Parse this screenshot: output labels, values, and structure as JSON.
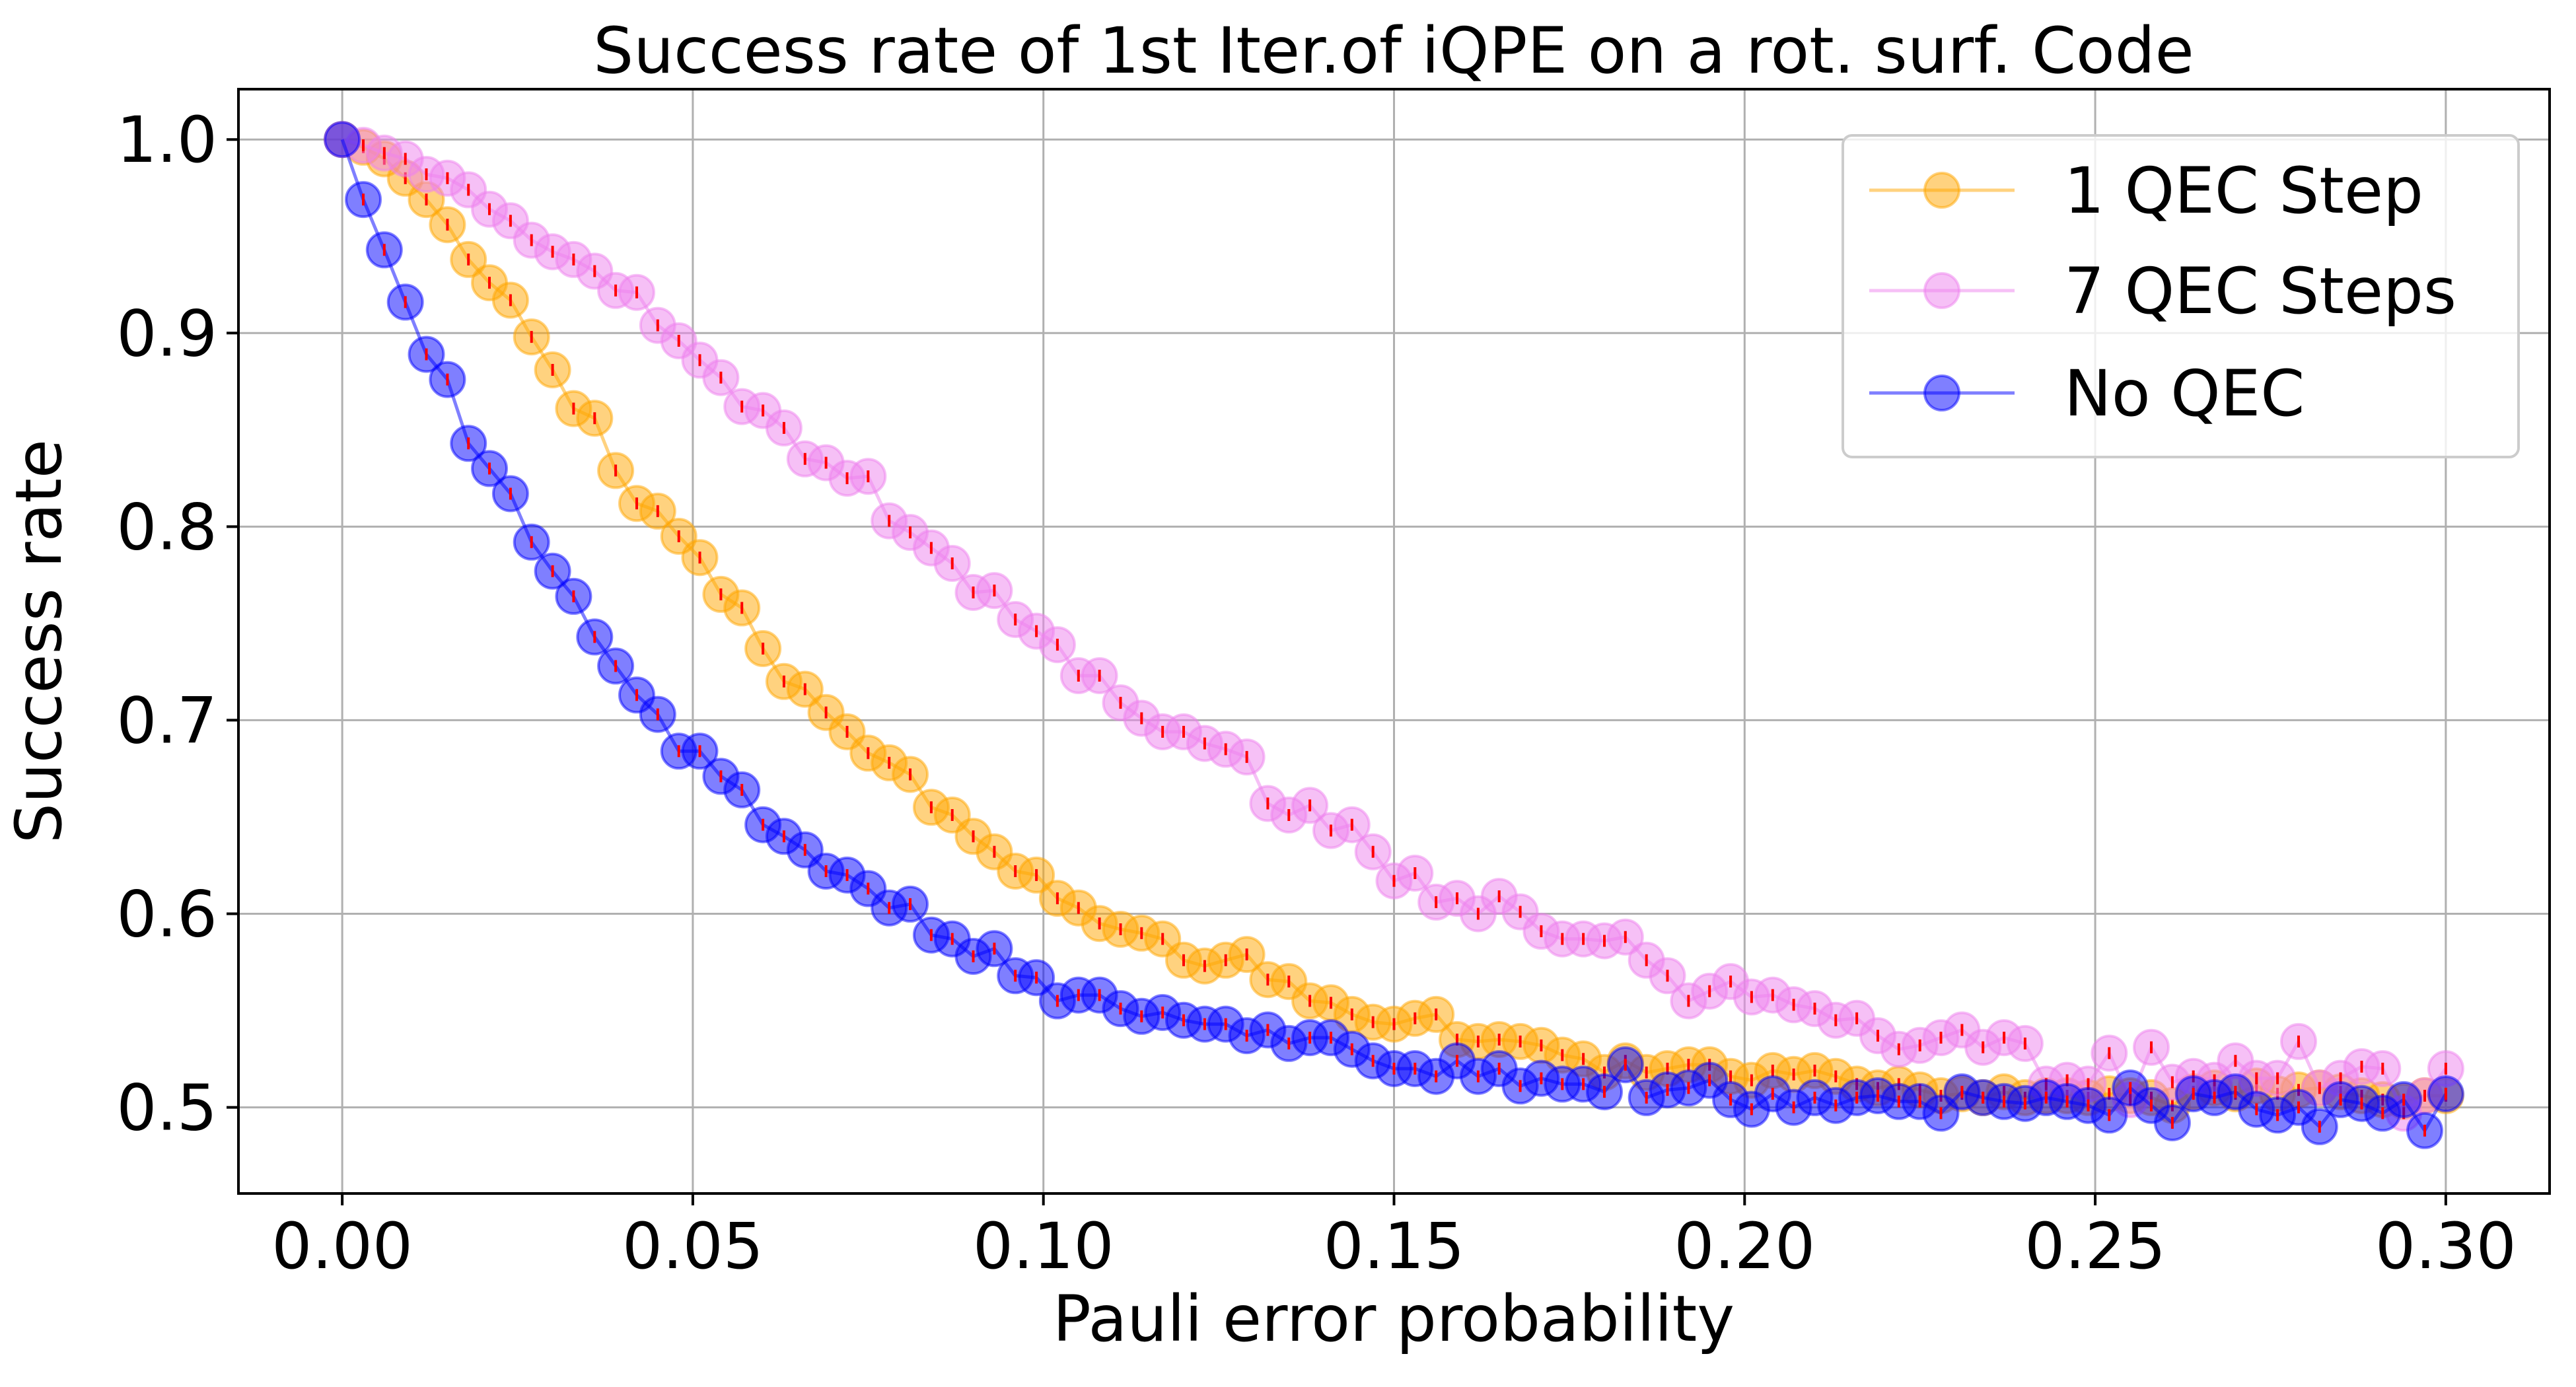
{
  "chart_data": {
    "type": "line",
    "title": "Success rate of 1st Iter.of iQPE on a rot. surf. Code",
    "xlabel": "Pauli error probability",
    "ylabel": "Success rate",
    "xlim": [
      -0.0148,
      0.3148
    ],
    "ylim": [
      0.4555,
      1.026
    ],
    "x_ticks": [
      0.0,
      0.05,
      0.1,
      0.15,
      0.2,
      0.25,
      0.3
    ],
    "x_tick_labels": [
      "0.00",
      "0.05",
      "0.10",
      "0.15",
      "0.20",
      "0.25",
      "0.30"
    ],
    "y_ticks": [
      0.5,
      0.6,
      0.7,
      0.8,
      0.9,
      1.0
    ],
    "y_tick_labels": [
      "0.5",
      "0.6",
      "0.7",
      "0.8",
      "0.9",
      "1.0"
    ],
    "grid": true,
    "legend_position": "top-right",
    "error_bar_color": "#ff0000",
    "x": [
      0.0,
      0.003,
      0.006,
      0.009,
      0.012,
      0.015,
      0.018,
      0.021,
      0.024,
      0.027,
      0.03,
      0.033,
      0.036,
      0.039,
      0.042,
      0.045,
      0.048,
      0.051,
      0.054,
      0.057,
      0.06,
      0.063,
      0.066,
      0.069,
      0.072,
      0.075,
      0.078,
      0.081,
      0.084,
      0.087,
      0.09,
      0.093,
      0.096,
      0.099,
      0.102,
      0.105,
      0.108,
      0.111,
      0.114,
      0.117,
      0.12,
      0.123,
      0.126,
      0.129,
      0.132,
      0.135,
      0.138,
      0.141,
      0.144,
      0.147,
      0.15,
      0.153,
      0.156,
      0.159,
      0.162,
      0.165,
      0.168,
      0.171,
      0.174,
      0.177,
      0.18,
      0.183,
      0.186,
      0.189,
      0.192,
      0.195,
      0.198,
      0.201,
      0.204,
      0.207,
      0.21,
      0.213,
      0.216,
      0.219,
      0.222,
      0.225,
      0.228,
      0.231,
      0.234,
      0.237,
      0.24,
      0.243,
      0.246,
      0.249,
      0.252,
      0.255,
      0.258,
      0.261,
      0.264,
      0.267,
      0.27,
      0.273,
      0.276,
      0.279,
      0.282,
      0.285,
      0.288,
      0.291,
      0.294,
      0.297,
      0.3
    ],
    "series": [
      {
        "name": "1 QEC Step",
        "color": "#ffa500",
        "values": [
          1.0,
          0.996,
          0.99,
          0.98,
          0.969,
          0.956,
          0.938,
          0.926,
          0.917,
          0.898,
          0.881,
          0.861,
          0.856,
          0.829,
          0.812,
          0.808,
          0.795,
          0.784,
          0.765,
          0.758,
          0.737,
          0.72,
          0.716,
          0.704,
          0.694,
          0.683,
          0.678,
          0.672,
          0.655,
          0.651,
          0.64,
          0.632,
          0.622,
          0.62,
          0.608,
          0.603,
          0.595,
          0.592,
          0.59,
          0.587,
          0.576,
          0.573,
          0.576,
          0.579,
          0.566,
          0.565,
          0.555,
          0.554,
          0.548,
          0.544,
          0.543,
          0.546,
          0.548,
          0.535,
          0.534,
          0.535,
          0.534,
          0.532,
          0.527,
          0.525,
          0.518,
          0.524,
          0.518,
          0.52,
          0.522,
          0.522,
          0.516,
          0.514,
          0.519,
          0.517,
          0.519,
          0.516,
          0.512,
          0.51,
          0.512,
          0.509,
          0.506,
          0.507,
          0.505,
          0.508,
          0.505,
          0.506,
          0.506,
          0.505,
          0.507,
          0.506,
          0.505,
          0.501,
          0.508,
          0.51,
          0.507,
          0.511,
          0.507,
          0.509,
          0.51,
          0.508,
          0.506,
          0.504,
          0.503,
          0.506,
          0.506
        ]
      },
      {
        "name": "7 QEC Steps",
        "color": "#ee82ee",
        "values": [
          1.0,
          0.997,
          0.993,
          0.99,
          0.982,
          0.98,
          0.974,
          0.964,
          0.958,
          0.948,
          0.942,
          0.938,
          0.932,
          0.922,
          0.921,
          0.904,
          0.896,
          0.886,
          0.877,
          0.862,
          0.86,
          0.851,
          0.835,
          0.833,
          0.825,
          0.826,
          0.803,
          0.797,
          0.789,
          0.781,
          0.766,
          0.767,
          0.752,
          0.746,
          0.739,
          0.723,
          0.723,
          0.709,
          0.701,
          0.694,
          0.694,
          0.688,
          0.685,
          0.681,
          0.657,
          0.651,
          0.656,
          0.643,
          0.646,
          0.632,
          0.617,
          0.621,
          0.606,
          0.608,
          0.6,
          0.609,
          0.601,
          0.591,
          0.587,
          0.587,
          0.586,
          0.588,
          0.576,
          0.568,
          0.555,
          0.56,
          0.565,
          0.557,
          0.558,
          0.553,
          0.551,
          0.545,
          0.546,
          0.537,
          0.53,
          0.532,
          0.536,
          0.54,
          0.531,
          0.536,
          0.533,
          0.512,
          0.514,
          0.512,
          0.528,
          0.504,
          0.531,
          0.513,
          0.516,
          0.514,
          0.524,
          0.515,
          0.515,
          0.534,
          0.51,
          0.515,
          0.521,
          0.52,
          0.497,
          0.506,
          0.52
        ]
      },
      {
        "name": "No QEC",
        "color": "#0000ff",
        "values": [
          1.0,
          0.969,
          0.943,
          0.916,
          0.889,
          0.876,
          0.843,
          0.83,
          0.817,
          0.792,
          0.777,
          0.764,
          0.743,
          0.728,
          0.713,
          0.703,
          0.684,
          0.684,
          0.671,
          0.664,
          0.646,
          0.64,
          0.633,
          0.622,
          0.62,
          0.613,
          0.603,
          0.605,
          0.589,
          0.587,
          0.578,
          0.582,
          0.568,
          0.567,
          0.555,
          0.558,
          0.558,
          0.551,
          0.547,
          0.549,
          0.545,
          0.543,
          0.543,
          0.537,
          0.54,
          0.533,
          0.536,
          0.536,
          0.53,
          0.524,
          0.52,
          0.52,
          0.516,
          0.524,
          0.516,
          0.52,
          0.511,
          0.515,
          0.512,
          0.512,
          0.508,
          0.522,
          0.505,
          0.509,
          0.51,
          0.514,
          0.504,
          0.499,
          0.507,
          0.5,
          0.505,
          0.501,
          0.505,
          0.506,
          0.503,
          0.503,
          0.497,
          0.508,
          0.505,
          0.503,
          0.502,
          0.505,
          0.503,
          0.501,
          0.496,
          0.51,
          0.501,
          0.492,
          0.507,
          0.505,
          0.508,
          0.499,
          0.496,
          0.5,
          0.49,
          0.504,
          0.502,
          0.497,
          0.504,
          0.488,
          0.507
        ]
      }
    ]
  }
}
